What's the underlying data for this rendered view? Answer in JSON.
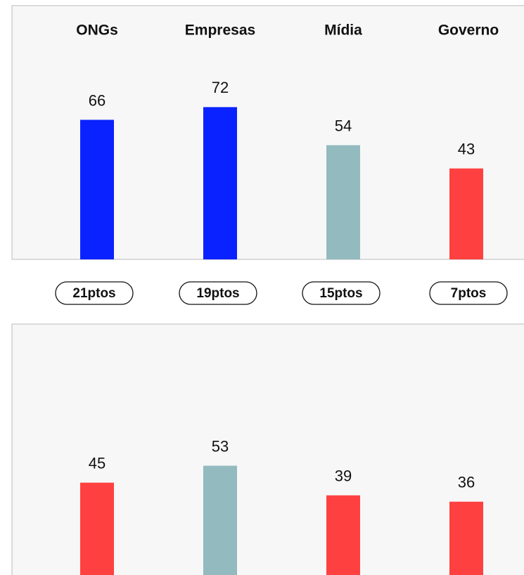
{
  "chart_data": [
    {
      "type": "bar",
      "categories": [
        "ONGs",
        "Empresas",
        "Mídia",
        "Governo"
      ],
      "values": [
        66,
        72,
        54,
        43
      ],
      "colors": [
        "#0a22ff",
        "#0a22ff",
        "#93babf",
        "#ff4040"
      ],
      "ylim": [
        0,
        120
      ],
      "annotations": [
        "21ptos",
        "19ptos",
        "15ptos",
        "7ptos"
      ]
    },
    {
      "type": "bar",
      "values": [
        45,
        53,
        39,
        36
      ],
      "colors": [
        "#ff4040",
        "#93babf",
        "#ff4040",
        "#ff4040"
      ],
      "ylim": [
        0,
        120
      ]
    }
  ]
}
